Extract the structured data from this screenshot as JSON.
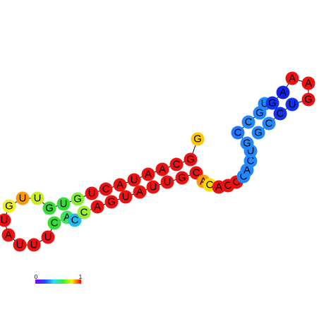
{
  "nodes": [
    {
      "label": "G",
      "color": "#ffc800"
    },
    {
      "label": "G",
      "color": "#ee1111"
    },
    {
      "label": "C",
      "color": "#ee1111"
    },
    {
      "label": "A",
      "color": "#ee1111"
    },
    {
      "label": "A",
      "color": "#ee1111"
    },
    {
      "label": "U",
      "color": "#ee1111"
    },
    {
      "label": "A",
      "color": "#ee1111"
    },
    {
      "label": "C",
      "color": "#ee1111"
    },
    {
      "label": "U",
      "color": "#ee1111"
    },
    {
      "label": "G",
      "color": "#88ee33"
    },
    {
      "label": "U",
      "color": "#33dd33"
    },
    {
      "label": "G",
      "color": "#33dd33"
    },
    {
      "label": "U",
      "color": "#ccee22"
    },
    {
      "label": "U",
      "color": "#ff9900"
    },
    {
      "label": "G",
      "color": "#eeee22"
    },
    {
      "label": "U",
      "color": "#ee1111"
    },
    {
      "label": "A",
      "color": "#ee1111"
    },
    {
      "label": "U",
      "color": "#ee1111"
    },
    {
      "label": "U",
      "color": "#ee1111"
    },
    {
      "label": "U",
      "color": "#ee1111"
    },
    {
      "label": "C",
      "color": "#33dd33"
    },
    {
      "label": "A",
      "color": "#44dd66"
    },
    {
      "label": "C",
      "color": "#22bbee"
    },
    {
      "label": "C",
      "color": "#99ee33"
    },
    {
      "label": "A",
      "color": "#ee1111"
    },
    {
      "label": "G",
      "color": "#ee1111"
    },
    {
      "label": "U",
      "color": "#ee1111"
    },
    {
      "label": "A",
      "color": "#ee1111"
    },
    {
      "label": "U",
      "color": "#ee1111"
    },
    {
      "label": "U",
      "color": "#ee1111"
    },
    {
      "label": "G",
      "color": "#ee1111"
    },
    {
      "label": "C",
      "color": "#ee1111"
    },
    {
      "label": "A",
      "color": "#ff9900"
    },
    {
      "label": "C",
      "color": "#ffdd00"
    },
    {
      "label": "A",
      "color": "#ee1111"
    },
    {
      "label": "C",
      "color": "#ee1111"
    },
    {
      "label": "C",
      "color": "#ee1111"
    },
    {
      "label": "C",
      "color": "#2288ff"
    },
    {
      "label": "A",
      "color": "#2288ff"
    },
    {
      "label": "C",
      "color": "#2288ff"
    },
    {
      "label": "U",
      "color": "#2288ff"
    },
    {
      "label": "G",
      "color": "#2288ff"
    },
    {
      "label": "C",
      "color": "#2277ff"
    },
    {
      "label": "C",
      "color": "#2288ff"
    },
    {
      "label": "G",
      "color": "#2288ff"
    },
    {
      "label": "U",
      "color": "#2288ff"
    },
    {
      "label": "G",
      "color": "#1133ee"
    },
    {
      "label": "A",
      "color": "#1122ee"
    },
    {
      "label": "A",
      "color": "#ee1111"
    },
    {
      "label": "A",
      "color": "#ee1111"
    },
    {
      "label": "G",
      "color": "#ee1111"
    },
    {
      "label": "U",
      "color": "#1133ee"
    },
    {
      "label": "C",
      "color": "#1133ee"
    },
    {
      "label": "C",
      "color": "#2288ff"
    },
    {
      "label": "G",
      "color": "#2288ff"
    }
  ],
  "legend": {
    "min_label": "0",
    "max_label": "1"
  }
}
